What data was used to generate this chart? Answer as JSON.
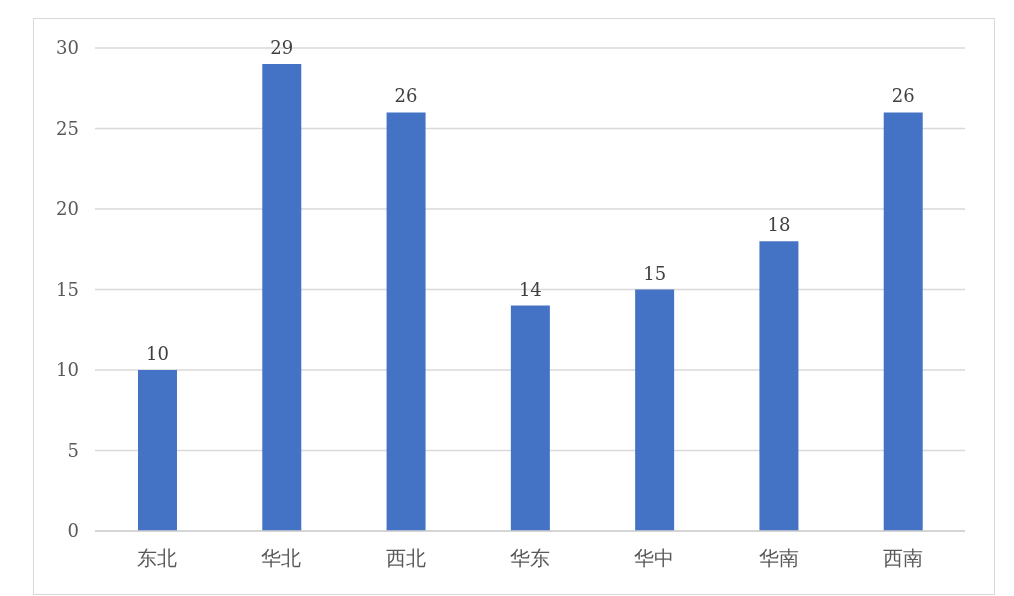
{
  "chart_data": {
    "type": "bar",
    "categories": [
      "东北",
      "华北",
      "西北",
      "华东",
      "华中",
      "华南",
      "西南"
    ],
    "values": [
      10,
      29,
      26,
      14,
      15,
      18,
      26
    ],
    "color": "#4472c4",
    "ylim": [
      0,
      30
    ],
    "yticks": [
      0,
      5,
      10,
      15,
      20,
      25,
      30
    ],
    "grid": "y",
    "data_labels": true
  }
}
